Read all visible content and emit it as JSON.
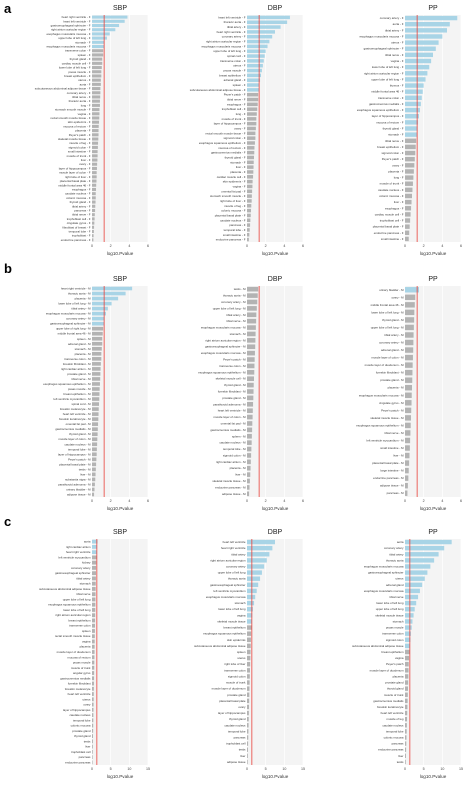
{
  "panel_letters": [
    "a",
    "b",
    "c"
  ],
  "colors": {
    "significant": "#a8d4e6",
    "nonsignificant": "#b3b3b3",
    "threshold": "#e8413a",
    "panel_bg": "#f4f4f4",
    "grid": "#ffffff",
    "axis_text": "#333333"
  },
  "chart_data": [
    {
      "type": "bar",
      "orientation": "horizontal",
      "row": "a",
      "title": "SBP",
      "xlabel": "log10.Pvalue",
      "xlim": [
        0,
        6
      ],
      "xticks": [
        0,
        2,
        4,
        6
      ],
      "threshold": 1.3,
      "grid": true,
      "categories": [
        "heart right ventricle - F",
        "heart left ventricle - F",
        "gastroesophageal sphincter - F",
        "right atrium auricular region - F",
        "esophagus muscularis mucosa - F",
        "upper lobe of left lung - F",
        "stomach - F",
        "esophagus muscularis mucosa - F",
        "transverse colon - F",
        "spleen - F",
        "thyroid gland - F",
        "cardiac muscle cell - F",
        "lower lobe of left lung - F",
        "psoas muscle - F",
        "breast epithelium - F",
        "uterus - F",
        "aorta - F",
        "subcutaneous abdominal adipose tissue - F",
        "coronary artery - F",
        "tibial nerve - F",
        "thoracic aorta - F",
        "lung - F",
        "stomach smooth muscle - F",
        "vagina - F",
        "rectal smooth muscle tissue - F",
        "skin epidermis - F",
        "mucosa of rectum - F",
        "placenta - F",
        "Peyer's patch - F",
        "skeletal muscle tissue - F",
        "muscle of leg - F",
        "sigmoid colon - F",
        "small intestine - F",
        "muscle of trunk - F",
        "liver - F",
        "ovary - F",
        "layer of hippocampus - F",
        "muscle layer of colon - F",
        "right lobe of liver - F",
        "placental basal plate - F",
        "middle frontal area 46 - F",
        "esophagus - F",
        "caudate nucleus - F",
        "colonic mucosa - F",
        "thyroid gland - F",
        "tibial artery - F",
        "pancreas - F",
        "tibial nerve - F",
        "trophoblast cell - F",
        "cingulate gyrus - F",
        "fibroblast of breast - F",
        "temporal lobe - F",
        "trophoblast - F",
        "endocrine pancreas - F"
      ],
      "values": [
        3.8,
        3.5,
        2.9,
        2.5,
        1.9,
        1.6,
        1.3,
        1.3,
        1.2,
        1.2,
        1.1,
        1.1,
        1.05,
        1.0,
        1.0,
        0.95,
        0.95,
        0.9,
        0.9,
        0.88,
        0.85,
        0.85,
        0.8,
        0.8,
        0.78,
        0.75,
        0.72,
        0.7,
        0.7,
        0.68,
        0.65,
        0.63,
        0.6,
        0.6,
        0.58,
        0.55,
        0.53,
        0.5,
        0.5,
        0.48,
        0.45,
        0.43,
        0.4,
        0.4,
        0.38,
        0.35,
        0.33,
        0.3,
        0.28,
        0.25,
        0.22,
        0.2,
        0.17,
        0.15
      ]
    },
    {
      "type": "bar",
      "orientation": "horizontal",
      "row": "a",
      "title": "DBP",
      "xlabel": "log10.Pvalue",
      "xlim": [
        0,
        6
      ],
      "xticks": [
        0,
        2,
        4,
        6
      ],
      "threshold": 1.3,
      "grid": true,
      "categories": [
        "heart left ventricle - F",
        "thoracic aorta - F",
        "tibial artery - F",
        "heart right ventricle - F",
        "coronary artery - F",
        "right atrium auricular region - F",
        "esophagus muscularis mucosa - F",
        "upper lobe of left lung - F",
        "spinal cord - F",
        "transverse colon - F",
        "uterus - F",
        "psoas muscle - F",
        "breast epithelium - F",
        "adrenal gland - F",
        "spleen - F",
        "subcutaneous abdominal adipose tissue - F",
        "Peyer's patch - F",
        "tibial nerve - F",
        "esophagus - F",
        "trophoblast cell - F",
        "lung - F",
        "muscle of trunk - F",
        "layer of hippocampus - F",
        "ovary - F",
        "rectal smooth muscle tissue - F",
        "sigmoid colon - F",
        "esophagus squamous epithelium - F",
        "mucosa of rectum - F",
        "gastrocnemius medialis - F",
        "thyroid gland - F",
        "stomach - F",
        "liver - F",
        "placenta - F",
        "cardiac muscle cell - F",
        "skin epidermis - F",
        "vagina - F",
        "omental fat pad - F",
        "stomach smooth muscle - F",
        "right lobe of liver - F",
        "muscle of leg - F",
        "colonic mucosa - F",
        "placental basal plate - F",
        "caudate nucleus - F",
        "pancreas - F",
        "temporal lobe - F",
        "small intestine - F",
        "endocrine pancreas - F"
      ],
      "values": [
        4.6,
        4.3,
        3.6,
        3.0,
        2.7,
        2.4,
        2.2,
        2.0,
        1.9,
        1.8,
        1.7,
        1.6,
        1.5,
        1.4,
        1.3,
        1.3,
        1.2,
        1.2,
        1.15,
        1.1,
        1.05,
        1.0,
        1.0,
        0.95,
        0.9,
        0.9,
        0.85,
        0.8,
        0.78,
        0.75,
        0.72,
        0.7,
        0.68,
        0.65,
        0.6,
        0.58,
        0.55,
        0.52,
        0.5,
        0.46,
        0.43,
        0.4,
        0.36,
        0.33,
        0.29,
        0.25,
        0.2
      ]
    },
    {
      "type": "bar",
      "orientation": "horizontal",
      "row": "a",
      "title": "PP",
      "xlabel": "log10.Pvalue",
      "xlim": [
        0,
        6
      ],
      "xticks": [
        0,
        2,
        4,
        6
      ],
      "threshold": 1.3,
      "grid": true,
      "categories": [
        "coronary artery - F",
        "aorta - F",
        "tibial artery - F",
        "esophagus muscularis mucosa - F",
        "uterus - F",
        "gastroesophageal sphincter - F",
        "tibial nerve - F",
        "vagina - F",
        "lower lobe of left lung - F",
        "right atrium auricular region - F",
        "upper lobe of left lung - F",
        "thymus - F",
        "middle frontal area 46 - F",
        "transverse colon - F",
        "gastrocnemius medialis - F",
        "esophagus squamous epithelium - F",
        "layer of hippocampus - F",
        "mucosa of rectum - F",
        "thyroid gland - F",
        "stomach - F",
        "tibial nerve - F",
        "breast epithelium - F",
        "sigmoid colon - F",
        "Peyer's patch - F",
        "ovary - F",
        "placenta - F",
        "lung - F",
        "muscle of trunk - F",
        "caudate nucleus - F",
        "colonic mucosa - F",
        "liver - F",
        "esophagus - F",
        "cardiac muscle cell - F",
        "trophoblast cell - F",
        "placental basal plate - F",
        "endocrine pancreas - F",
        "small intestine - F"
      ],
      "values": [
        5.6,
        4.8,
        4.5,
        4.0,
        3.6,
        3.3,
        3.0,
        2.8,
        2.6,
        2.4,
        2.2,
        2.0,
        1.9,
        1.8,
        1.7,
        1.6,
        1.5,
        1.4,
        1.35,
        1.3,
        1.2,
        1.15,
        1.1,
        1.05,
        1.0,
        0.95,
        0.9,
        0.85,
        0.8,
        0.75,
        0.7,
        0.65,
        0.6,
        0.55,
        0.5,
        0.45,
        0.4
      ]
    },
    {
      "type": "bar",
      "orientation": "horizontal",
      "row": "b",
      "title": "SBP",
      "xlabel": "log10.Pvalue",
      "xlim": [
        0,
        6
      ],
      "xticks": [
        0,
        2,
        4,
        6
      ],
      "threshold": 1.3,
      "grid": true,
      "categories": [
        "heart right ventricle - M",
        "thoracic aorta - M",
        "placenta - M",
        "lower lobe of left lung - M",
        "tibial artery - M",
        "esophagus muscularis mucosa - M",
        "coronary artery - M",
        "gastroesophageal sphincter - M",
        "upper lobe of right lung - M",
        "middle frontal area 46 - M",
        "spleen - M",
        "adrenal gland - M",
        "stomach - M",
        "placenta - M",
        "transverse colon - M",
        "foreskin fibroblast - M",
        "right cardiac atrium - M",
        "prostate gland - M",
        "tibial nerve - M",
        "esophagus squamous epithelium - M",
        "psoas muscle - M",
        "breast epithelium - M",
        "left ventricle myocardium - M",
        "spinal cord - M",
        "foreskin melanocyte - M",
        "heart left ventricle - M",
        "foreskin keratinocyte - M",
        "omental fat pad - M",
        "gastrocnemius medialis - M",
        "thyroid gland - M",
        "muscle layer of colon - M",
        "caudate nucleus - M",
        "temporal lobe - M",
        "layer of hippocampus - M",
        "Peyer's patch - M",
        "placental basal plate - M",
        "testis - M",
        "liver - M",
        "substantia nigra - M",
        "parathyroid adenoma - M",
        "urinary bladder - M",
        "adipose tissue - M"
      ],
      "values": [
        4.3,
        3.6,
        2.8,
        2.1,
        1.7,
        1.5,
        1.35,
        1.3,
        1.2,
        1.15,
        1.1,
        1.1,
        1.05,
        1.0,
        1.0,
        0.95,
        0.92,
        0.9,
        0.88,
        0.85,
        0.82,
        0.8,
        0.78,
        0.75,
        0.72,
        0.7,
        0.68,
        0.65,
        0.62,
        0.6,
        0.57,
        0.55,
        0.52,
        0.5,
        0.47,
        0.44,
        0.41,
        0.38,
        0.35,
        0.31,
        0.27,
        0.22
      ]
    },
    {
      "type": "bar",
      "orientation": "horizontal",
      "row": "b",
      "title": "DBP",
      "xlabel": "log10.Pvalue",
      "xlim": [
        0,
        6
      ],
      "xticks": [
        0,
        2,
        4,
        6
      ],
      "threshold": 1.3,
      "grid": true,
      "categories": [
        "testis - M",
        "thoracic aorta - M",
        "coronary artery - M",
        "upper lobe of left lung - M",
        "tibial artery - M",
        "tibial nerve - M",
        "esophagus muscularis mucosa - M",
        "stomach - M",
        "right atrium auricular region - M",
        "gastroesophageal sphincter - M",
        "esophagus muscularis mucosa - M",
        "Peyer's patch - M",
        "transverse colon - M",
        "esophagus squamous epithelium - M",
        "skeletal muscle cell - M",
        "thyroid gland - M",
        "foreskin fibroblast - M",
        "prostate gland - M",
        "parathyroid adenoma - M",
        "heart left ventricle - M",
        "muscle layer of colon - M",
        "omental fat pad - M",
        "gastrocnemius medialis - M",
        "spleen - M",
        "caudate nucleus - M",
        "temporal lobe - M",
        "sigmoid colon - M",
        "right cardiac atrium - M",
        "placenta - M",
        "liver - M",
        "skeletal muscle tissue - M",
        "endocrine pancreas - M",
        "adipose tissue - M"
      ],
      "values": [
        1.2,
        1.15,
        1.1,
        1.05,
        1.0,
        0.98,
        0.95,
        0.92,
        0.9,
        0.88,
        0.85,
        0.82,
        0.8,
        0.78,
        0.75,
        0.72,
        0.7,
        0.68,
        0.65,
        0.62,
        0.6,
        0.57,
        0.55,
        0.52,
        0.5,
        0.47,
        0.44,
        0.41,
        0.38,
        0.35,
        0.31,
        0.27,
        0.22
      ]
    },
    {
      "type": "bar",
      "orientation": "horizontal",
      "row": "b",
      "title": "PP",
      "xlabel": "log10.Pvalue",
      "xlim": [
        0,
        6
      ],
      "xticks": [
        0,
        2,
        4,
        6
      ],
      "threshold": 1.3,
      "grid": true,
      "categories": [
        "urinary bladder - M",
        "ovary - M",
        "middle frontal area 46 - M",
        "lower lobe of left lung - M",
        "thyroid gland - M",
        "upper lobe of left lung - M",
        "tibial artery - M",
        "coronary artery - M",
        "adrenal gland - M",
        "muscle layer of colon - M",
        "muscle layer of duodenum - M",
        "foreskin fibroblast - M",
        "prostate gland - M",
        "placenta - M",
        "esophagus muscularis mucosa - M",
        "cingulate gyrus - M",
        "Peyer's patch - M",
        "skeletal muscle tissue - M",
        "esophagus squamous epithelium - M",
        "tibial nerve - M",
        "left ventricle myocardium - M",
        "small intestine - M",
        "liver - M",
        "placental basal plate - M",
        "large intestine - M",
        "endocrine pancreas - M",
        "adipose tissue - M",
        "pancreas - M"
      ],
      "values": [
        1.5,
        1.1,
        1.05,
        1.0,
        0.98,
        0.95,
        0.92,
        0.9,
        0.88,
        0.85,
        0.82,
        0.8,
        0.78,
        0.75,
        0.72,
        0.7,
        0.67,
        0.64,
        0.61,
        0.58,
        0.55,
        0.52,
        0.48,
        0.44,
        0.4,
        0.36,
        0.31,
        0.26
      ]
    },
    {
      "type": "bar",
      "orientation": "horizontal",
      "row": "c",
      "title": "SBP",
      "xlabel": "log10.Pvalue",
      "xlim": [
        0,
        15
      ],
      "xticks": [
        0,
        5,
        10,
        15
      ],
      "threshold": 1.3,
      "grid": true,
      "categories": [
        "aorta",
        "right cardiac atrium",
        "heart right ventricle",
        "left ventricle myocardium",
        "kidney",
        "coronary artery",
        "gastroesophageal sphincter",
        "tibial artery",
        "stomach",
        "subcutaneous abdominal adipose tissue",
        "tibial nerve",
        "upper lobe of left lung",
        "esophagus squamous epithelium",
        "lower lobe of left lung",
        "right atrium auricular region",
        "breast epithelium",
        "transverse colon",
        "spleen",
        "rectal smooth muscle tissue",
        "vagina",
        "placenta",
        "muscle layer of duodenum",
        "mucosa of rectum",
        "psoas muscle",
        "muscle of trunk",
        "angular gyrus",
        "gastrocnemius medialis",
        "foreskin fibroblast",
        "foreskin melanocyte",
        "heart left ventricle",
        "uterus",
        "ovary",
        "layer of hippocampus",
        "caudate nucleus",
        "temporal lobe",
        "colonic mucosa",
        "prostate gland",
        "thyroid gland",
        "testis",
        "liver",
        "trophoblast cell",
        "pancreas",
        "endocrine pancreas"
      ],
      "values": [
        1.5,
        1.35,
        1.3,
        1.2,
        1.15,
        1.1,
        1.08,
        1.05,
        1.0,
        0.98,
        0.95,
        0.92,
        0.9,
        0.88,
        0.85,
        0.82,
        0.8,
        0.78,
        0.75,
        0.72,
        0.7,
        0.68,
        0.65,
        0.62,
        0.6,
        0.57,
        0.55,
        0.52,
        0.5,
        0.47,
        0.45,
        0.42,
        0.4,
        0.37,
        0.35,
        0.32,
        0.3,
        0.27,
        0.25,
        0.22,
        0.2,
        0.17,
        0.15
      ]
    },
    {
      "type": "bar",
      "orientation": "horizontal",
      "row": "c",
      "title": "DBP",
      "xlabel": "log10.Pvalue",
      "xlim": [
        0,
        15
      ],
      "xticks": [
        0,
        5,
        10,
        15
      ],
      "threshold": 1.3,
      "grid": true,
      "categories": [
        "heart left ventricle",
        "heart right ventricle",
        "tibial artery",
        "right atrium auricular region",
        "coronary artery",
        "upper lobe of left lung",
        "thoracic aorta",
        "gastroesophageal sphincter",
        "left ventricle myocardium",
        "esophagus muscularis mucosa",
        "stomach",
        "lower lobe of left lung",
        "vagina",
        "skeletal muscle tissue",
        "breast epithelium",
        "esophagus squamous epithelium",
        "skin epidermis",
        "subcutaneous abdominal adipose tissue",
        "spleen",
        "uterus",
        "right lobe of liver",
        "transverse colon",
        "sigmoid colon",
        "muscle of trunk",
        "muscle layer of duodenum",
        "prostate gland",
        "placental basal plate",
        "ovary",
        "layer of hippocampus",
        "thyroid gland",
        "caudate nucleus",
        "temporal lobe",
        "pancreas",
        "trophoblast cell",
        "testis",
        "liver",
        "adipose tissue"
      ],
      "values": [
        7.5,
        6.8,
        6.0,
        5.3,
        4.6,
        4.0,
        3.5,
        3.0,
        2.6,
        2.2,
        1.9,
        1.6,
        1.4,
        1.3,
        1.2,
        1.1,
        1.05,
        1.0,
        0.95,
        0.9,
        0.85,
        0.8,
        0.75,
        0.7,
        0.66,
        0.62,
        0.58,
        0.54,
        0.5,
        0.46,
        0.42,
        0.38,
        0.34,
        0.3,
        0.26,
        0.22,
        0.18
      ]
    },
    {
      "type": "bar",
      "orientation": "horizontal",
      "row": "c",
      "title": "PP",
      "xlabel": "log10.Pvalue",
      "xlim": [
        0,
        15
      ],
      "xticks": [
        0,
        5,
        10,
        15
      ],
      "threshold": 1.3,
      "grid": true,
      "categories": [
        "aorta",
        "coronary artery",
        "tibial artery",
        "thoracic aorta",
        "esophagus muscularis mucosa",
        "gastroesophageal sphincter",
        "uterus",
        "adrenal gland",
        "esophagus muscularis mucosa",
        "tibial nerve",
        "lower lobe of left lung",
        "upper lobe of left lung",
        "skeletal muscle tissue",
        "stomach",
        "psoas muscle",
        "transverse colon",
        "sigmoid colon",
        "subcutaneous abdominal adipose tissue",
        "breast epithelium",
        "vagina",
        "Peyer's patch",
        "muscle layer of duodenum",
        "placenta",
        "prostate gland",
        "thyroid gland",
        "muscle of trunk",
        "gastrocnemius medialis",
        "foreskin keratinocyte",
        "heart left ventricle",
        "muscle of leg",
        "caudate nucleus",
        "temporal lobe",
        "colonic mucosa",
        "pancreas",
        "endocrine pancreas",
        "liver",
        "testis"
      ],
      "values": [
        12.5,
        10.5,
        9.0,
        7.8,
        6.8,
        6.0,
        5.3,
        4.6,
        4.0,
        3.5,
        3.0,
        2.6,
        2.3,
        2.0,
        1.8,
        1.6,
        1.45,
        1.3,
        1.2,
        1.1,
        1.0,
        0.95,
        0.9,
        0.85,
        0.8,
        0.75,
        0.7,
        0.65,
        0.6,
        0.55,
        0.5,
        0.45,
        0.4,
        0.35,
        0.3,
        0.25,
        0.2
      ]
    }
  ]
}
